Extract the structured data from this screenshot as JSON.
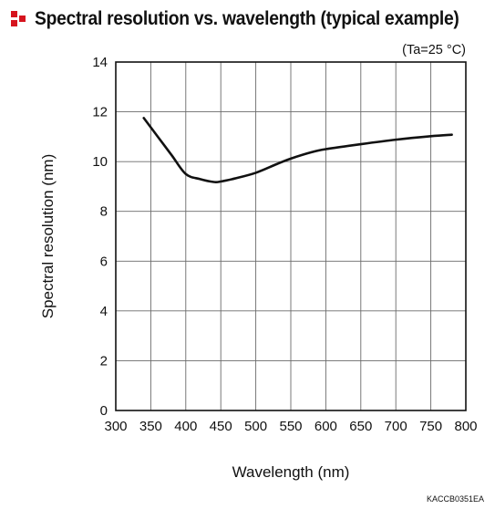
{
  "chart_data": {
    "type": "line",
    "title": "Spectral resolution vs. wavelength (typical example)",
    "condition_note": "(Ta=25 °C)",
    "xlabel": "Wavelength (nm)",
    "ylabel": "Spectral resolution (nm)",
    "xlim": [
      300,
      800
    ],
    "ylim": [
      0,
      14
    ],
    "x_ticks": [
      300,
      350,
      400,
      450,
      500,
      550,
      600,
      650,
      700,
      750,
      800
    ],
    "y_ticks": [
      0,
      2,
      4,
      6,
      8,
      10,
      12,
      14
    ],
    "grid": true,
    "series": [
      {
        "x": [
          340,
          360,
          380,
          400,
          420,
          440,
          450,
          470,
          500,
          530,
          550,
          580,
          600,
          650,
          700,
          750,
          780
        ],
        "values": [
          11.75,
          11.0,
          10.25,
          9.5,
          9.3,
          9.18,
          9.2,
          9.32,
          9.55,
          9.9,
          10.12,
          10.38,
          10.5,
          10.7,
          10.88,
          11.02,
          11.08
        ],
        "color": "#111111"
      }
    ],
    "footnote": "KACCB0351EA"
  },
  "icon": "red-block-logo-icon"
}
